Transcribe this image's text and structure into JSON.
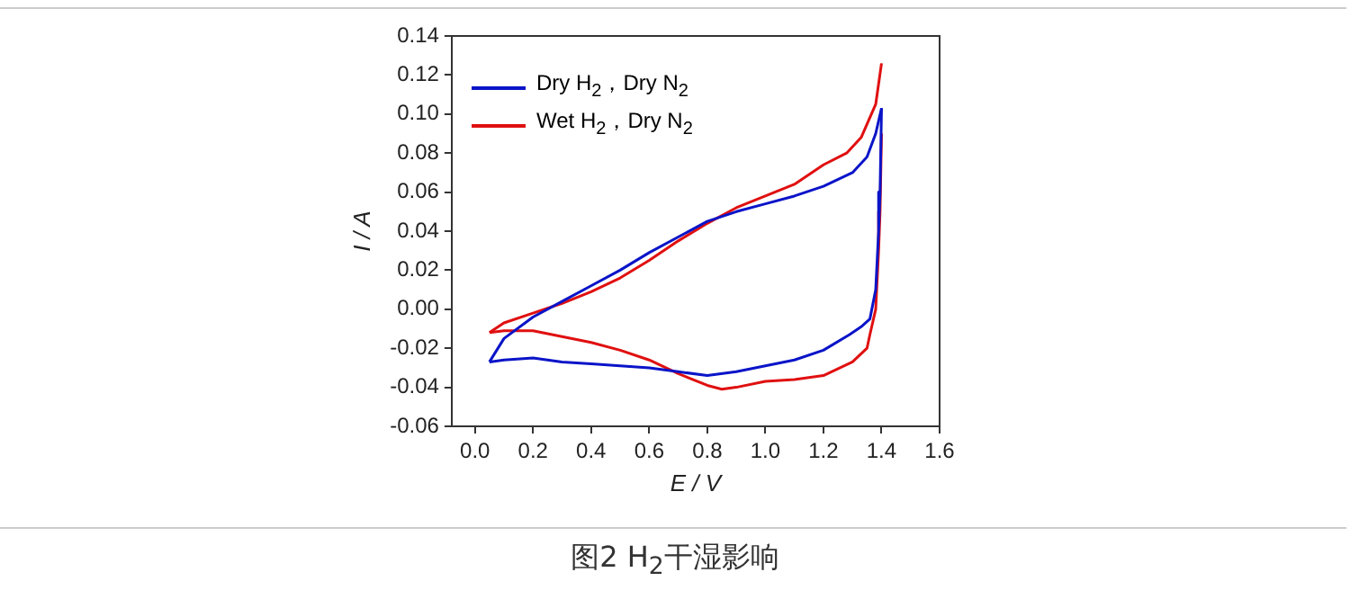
{
  "chart_data": {
    "type": "line",
    "title": "图2  H$_{2}$干湿影响",
    "xlabel": "E / V",
    "ylabel": "I / A",
    "xlim": [
      -0.08,
      1.6
    ],
    "xticks": [
      {
        "value": 0,
        "label": "0.0"
      },
      0.2,
      0.4,
      0.6,
      0.8,
      {
        "value": 1,
        "label": "1.0"
      },
      1.2,
      1.4,
      1.6
    ],
    "ylim": [
      -0.06,
      0.14
    ],
    "yticks": [
      -0.06,
      -0.04,
      -0.02,
      {
        "value": 0,
        "label": "0.00"
      },
      0.02,
      0.04,
      0.06,
      0.08,
      {
        "value": 0.1,
        "label": "0.10"
      },
      0.12,
      0.14
    ],
    "grid": false,
    "legend": "top left",
    "marker": "none",
    "line_style": "solid",
    "series": [
      {
        "name": "Dry H$_{2}$，Dry N$_{2}$",
        "color": "#0a14c8",
        "x": [
          0.05,
          0.1,
          0.2,
          0.3,
          0.4,
          0.5,
          0.6,
          0.7,
          0.8,
          0.9,
          1.0,
          1.1,
          1.2,
          1.3,
          1.35,
          1.38,
          1.4
        ],
        "values": [
          -0.027,
          -0.015,
          -0.004,
          0.004,
          0.012,
          0.02,
          0.029,
          0.037,
          0.045,
          0.05,
          0.054,
          0.058,
          0.063,
          0.07,
          0.078,
          0.09,
          0.103
        ]
      },
      {
        "color": "#0a14c8",
        "x": [
          1.4,
          1.395,
          1.39,
          1.38,
          1.36,
          1.33,
          1.29,
          1.2,
          1.1,
          1.0,
          0.9,
          0.8,
          0.7,
          0.6,
          0.5,
          0.4,
          0.3,
          0.2,
          0.1,
          0.05
        ],
        "values": [
          0.103,
          0.06,
          0.04,
          0.01,
          -0.005,
          -0.009,
          -0.013,
          -0.021,
          -0.026,
          -0.029,
          -0.032,
          -0.034,
          -0.032,
          -0.03,
          -0.029,
          -0.028,
          -0.027,
          -0.025,
          -0.026,
          -0.027
        ]
      },
      {
        "name": "Wet H$_{2}$，Dry N$_{2}$",
        "color": "#e01010",
        "x": [
          0.05,
          0.1,
          0.2,
          0.3,
          0.4,
          0.5,
          0.6,
          0.7,
          0.8,
          0.9,
          1.0,
          1.1,
          1.2,
          1.28,
          1.33,
          1.38,
          1.4
        ],
        "values": [
          -0.012,
          -0.007,
          -0.002,
          0.003,
          0.009,
          0.016,
          0.025,
          0.035,
          0.044,
          0.052,
          0.058,
          0.064,
          0.074,
          0.08,
          0.088,
          0.105,
          0.126
        ]
      },
      {
        "color": "#e01010",
        "x": [
          1.4,
          1.395,
          1.39,
          1.38,
          1.36,
          1.35,
          1.3,
          1.2,
          1.1,
          1.0,
          0.9,
          0.85,
          0.8,
          0.7,
          0.6,
          0.5,
          0.4,
          0.3,
          0.2,
          0.1,
          0.05
        ],
        "values": [
          0.09,
          0.05,
          0.03,
          0.0,
          -0.013,
          -0.02,
          -0.027,
          -0.034,
          -0.036,
          -0.037,
          -0.04,
          -0.041,
          -0.039,
          -0.033,
          -0.026,
          -0.021,
          -0.017,
          -0.014,
          -0.011,
          -0.011,
          -0.012
        ]
      }
    ]
  }
}
